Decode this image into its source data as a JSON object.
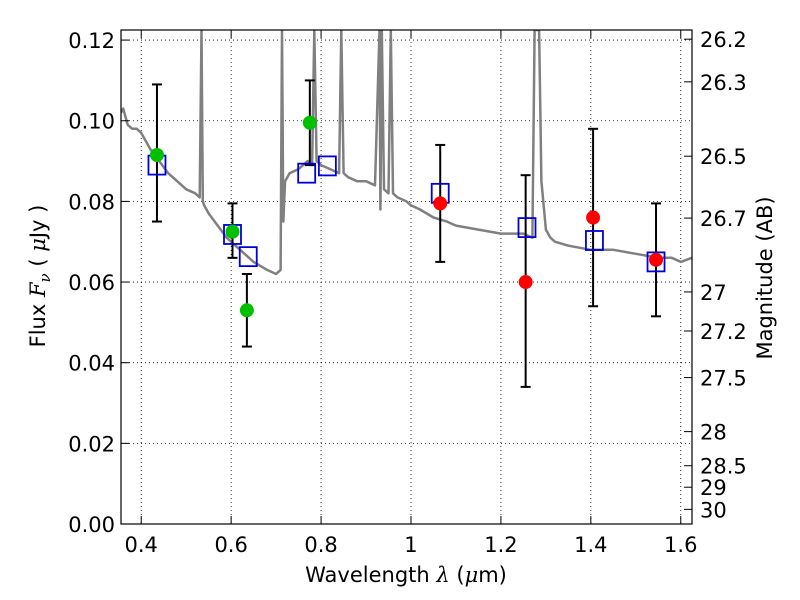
{
  "chart_data": {
    "type": "scatter",
    "xlabel": {
      "prefix": "Wavelength ",
      "symbol": "λ",
      "unit_open": " (",
      "unit_mu": "μ",
      "unit_close": "m)"
    },
    "ylabel": {
      "prefix": "Flux ",
      "symbol": "F",
      "sub": "ν",
      "unit_open": " ( ",
      "unit_mu": "μ",
      "unit_close": "Jy )"
    },
    "y2label": "Magnitude (AB)",
    "xlim": [
      0.355,
      1.625
    ],
    "ylim": [
      0.0,
      0.1225
    ],
    "grid": true,
    "x_ticks": [
      0.4,
      0.6,
      0.8,
      1.0,
      1.2,
      1.4,
      1.6
    ],
    "x_tick_labels": [
      "0.4",
      "0.6",
      "0.8",
      "1",
      "1.2",
      "1.4",
      "1.6"
    ],
    "y_ticks": [
      0.0,
      0.02,
      0.04,
      0.06,
      0.08,
      0.1,
      0.12
    ],
    "y_tick_labels": [
      "0.00",
      "0.02",
      "0.04",
      "0.06",
      "0.08",
      "0.10",
      "0.12"
    ],
    "magnitude_ticks": [
      "26.2",
      "26.3",
      "26.5",
      "26.7",
      "27",
      "27.2",
      "27.5",
      "28",
      "28.5",
      "29",
      "30"
    ],
    "model_spectrum": {
      "color": "#808080",
      "x": [
        0.355,
        0.36,
        0.37,
        0.38,
        0.39,
        0.4,
        0.42,
        0.44,
        0.46,
        0.48,
        0.5,
        0.52,
        0.53,
        0.534,
        0.537,
        0.54,
        0.55,
        0.57,
        0.59,
        0.62,
        0.65,
        0.68,
        0.7,
        0.71,
        0.713,
        0.716,
        0.72,
        0.73,
        0.75,
        0.77,
        0.78,
        0.785,
        0.79,
        0.8,
        0.82,
        0.84,
        0.845,
        0.85,
        0.86,
        0.88,
        0.9,
        0.92,
        0.93,
        0.932,
        0.935,
        0.94,
        0.95,
        0.955,
        0.96,
        0.97,
        0.99,
        1.0,
        1.02,
        1.05,
        1.08,
        1.1,
        1.15,
        1.2,
        1.25,
        1.27,
        1.275,
        1.28,
        1.285,
        1.29,
        1.3,
        1.31,
        1.32,
        1.35,
        1.4,
        1.45,
        1.5,
        1.55,
        1.58,
        1.6,
        1.625
      ],
      "y": [
        0.102,
        0.103,
        0.099,
        0.098,
        0.098,
        0.097,
        0.093,
        0.09,
        0.087,
        0.085,
        0.083,
        0.082,
        0.081,
        0.1225,
        0.08,
        0.079,
        0.077,
        0.074,
        0.071,
        0.068,
        0.065,
        0.063,
        0.062,
        0.063,
        0.1225,
        0.075,
        0.085,
        0.087,
        0.088,
        0.09,
        0.089,
        0.1225,
        0.09,
        0.089,
        0.088,
        0.087,
        0.1225,
        0.087,
        0.086,
        0.085,
        0.085,
        0.084,
        0.1225,
        0.078,
        0.1225,
        0.083,
        0.082,
        0.1225,
        0.082,
        0.081,
        0.08,
        0.079,
        0.078,
        0.076,
        0.075,
        0.074,
        0.073,
        0.072,
        0.072,
        0.071,
        0.1225,
        0.1225,
        0.1225,
        0.085,
        0.073,
        0.071,
        0.07,
        0.069,
        0.068,
        0.068,
        0.067,
        0.066,
        0.066,
        0.065,
        0.066
      ]
    },
    "series": [
      {
        "marker": "circle",
        "color": "#00c000",
        "x": [
          0.435,
          0.603,
          0.635,
          0.775
        ],
        "y": [
          0.0915,
          0.0725,
          0.053,
          0.0995
        ],
        "yerr_low": [
          0.075,
          0.066,
          0.044,
          0.089
        ],
        "yerr_high": [
          0.109,
          0.0795,
          0.062,
          0.11
        ]
      },
      {
        "marker": "circle",
        "color": "#ff0000",
        "x": [
          1.065,
          1.255,
          1.405,
          1.545
        ],
        "y": [
          0.0795,
          0.06,
          0.076,
          0.0655
        ],
        "yerr_low": [
          0.065,
          0.034,
          0.054,
          0.0515
        ],
        "yerr_high": [
          0.094,
          0.0865,
          0.098,
          0.0795
        ]
      },
      {
        "marker": "square",
        "color": "#0000dd",
        "x": [
          0.435,
          0.603,
          0.638,
          0.768,
          0.814,
          1.065,
          1.258,
          1.408,
          1.545
        ],
        "y": [
          0.089,
          0.0718,
          0.0663,
          0.087,
          0.0888,
          0.082,
          0.0735,
          0.0703,
          0.065
        ]
      }
    ]
  }
}
